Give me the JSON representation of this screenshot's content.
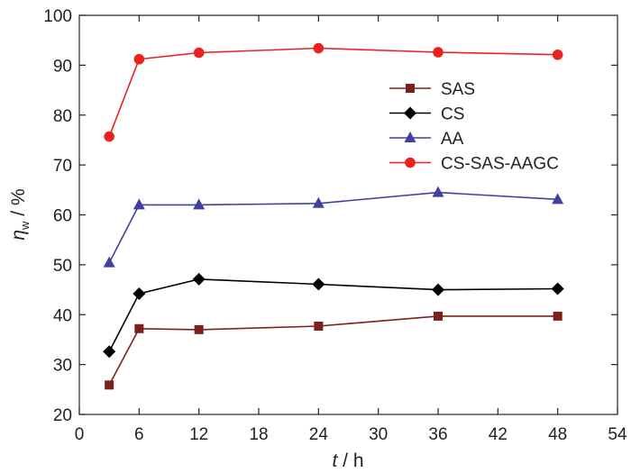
{
  "chart_data": {
    "type": "line",
    "title": "",
    "xlabel": "t / h",
    "xlabel_var": "t",
    "xlabel_unit": " / h",
    "ylabel": "ηw / %",
    "ylabel_var": "η",
    "ylabel_sub": "w",
    "ylabel_unit": " / %",
    "xlim": [
      0,
      54
    ],
    "ylim": [
      20,
      100
    ],
    "xticks": [
      0,
      6,
      12,
      18,
      24,
      30,
      36,
      42,
      48,
      54
    ],
    "yticks": [
      20,
      30,
      40,
      50,
      60,
      70,
      80,
      90,
      100
    ],
    "x": [
      3,
      6,
      12,
      24,
      36,
      48
    ],
    "legend_position": "upper-right",
    "grid": false,
    "series": [
      {
        "name": "SAS",
        "marker": "square",
        "color": "#7b1f1f",
        "values": [
          25.9,
          37.2,
          37.0,
          37.7,
          39.7,
          39.7
        ]
      },
      {
        "name": "CS",
        "marker": "diamond",
        "color": "#000000",
        "values": [
          32.6,
          44.2,
          47.1,
          46.1,
          45.0,
          45.2
        ]
      },
      {
        "name": "AA",
        "marker": "triangle",
        "color": "#4040a0",
        "values": [
          50.4,
          62.0,
          62.0,
          62.3,
          64.5,
          63.1
        ]
      },
      {
        "name": "CS-SAS-AAGC",
        "marker": "circle",
        "color": "#e8231f",
        "values": [
          75.7,
          91.2,
          92.5,
          93.4,
          92.6,
          92.1
        ]
      }
    ]
  }
}
